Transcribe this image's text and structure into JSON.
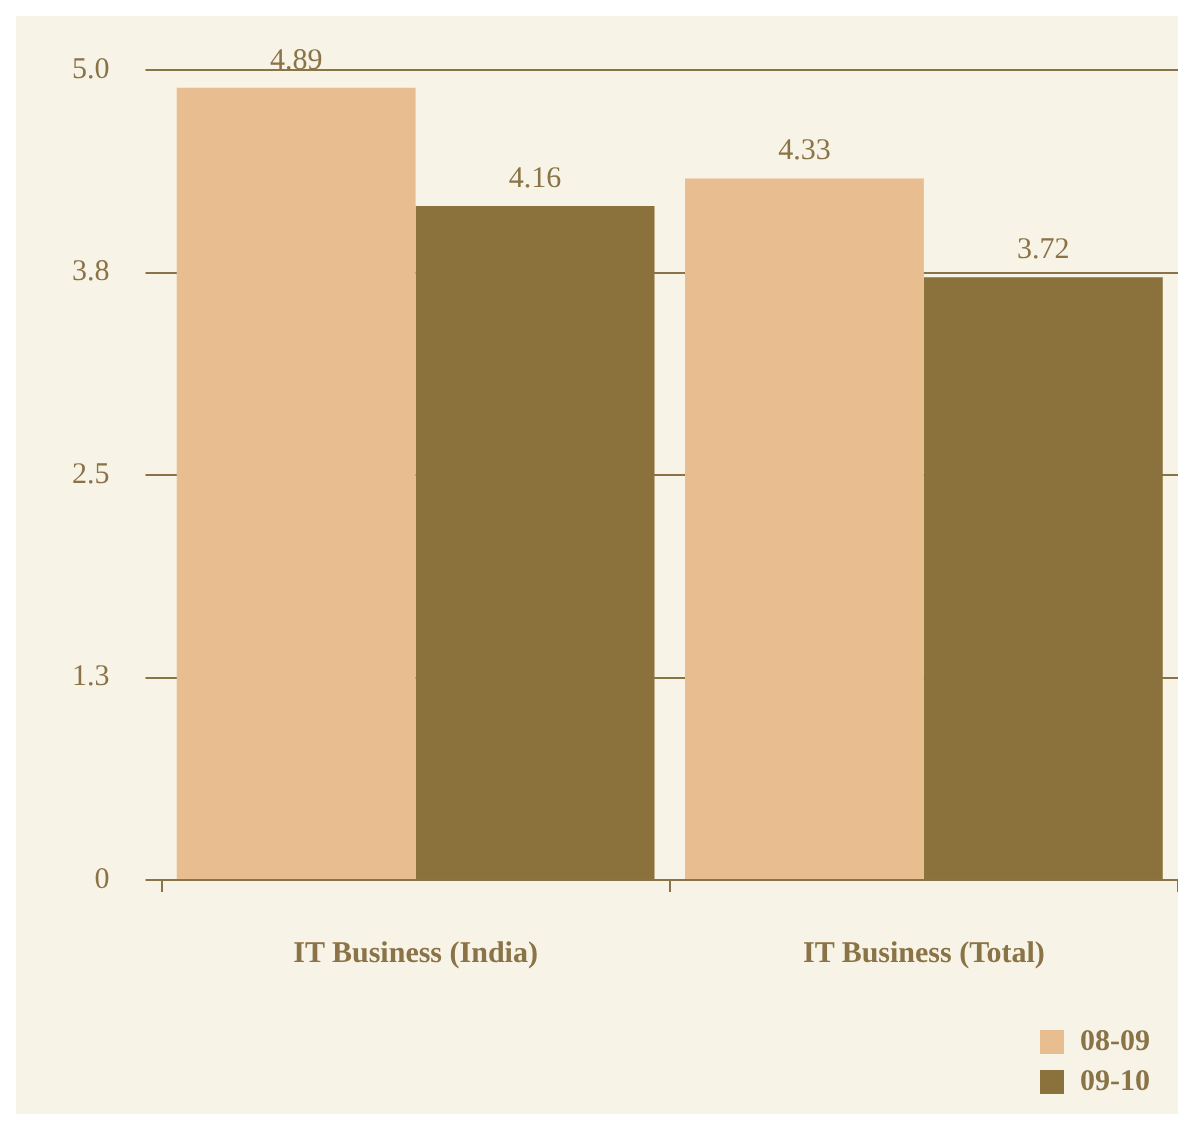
{
  "chart_data": {
    "type": "bar",
    "categories": [
      "IT Business (India)",
      "IT Business (Total)"
    ],
    "series": [
      {
        "name": "08-09",
        "color": "#e8be90",
        "values": [
          4.89,
          4.33
        ]
      },
      {
        "name": "09-10",
        "color": "#8b713c",
        "values": [
          4.16,
          3.72
        ]
      }
    ],
    "ylim": [
      0,
      5
    ],
    "yticks": [
      0,
      {
        "value": 1.25,
        "label": "1.3"
      },
      2.5,
      {
        "value": 3.75,
        "label": "3.8"
      },
      {
        "value": 5,
        "label": "5.0"
      }
    ],
    "grid": "y",
    "legend": "bottom right",
    "data_labels": true
  }
}
